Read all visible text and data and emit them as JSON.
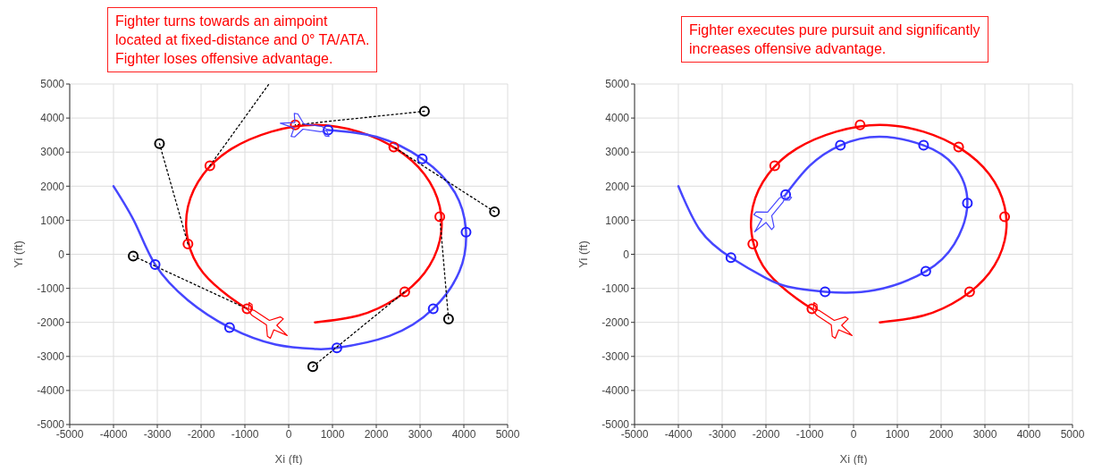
{
  "chart_data": [
    {
      "type": "line",
      "xlabel": "Xi (ft)",
      "ylabel": "Yi (ft)",
      "xlim": [
        -5000,
        5000
      ],
      "ylim": [
        -5000,
        5000
      ],
      "xticks": [
        -5000,
        -4000,
        -3000,
        -2000,
        -1000,
        0,
        1000,
        2000,
        3000,
        4000,
        5000
      ],
      "yticks": [
        -5000,
        -4000,
        -3000,
        -2000,
        -1000,
        0,
        1000,
        2000,
        3000,
        4000,
        5000
      ],
      "grid": true,
      "annotations": [
        "Fighter turns towards an aimpoint\nlocated at fixed-distance and 0° TA/ATA.\nFighter loses offensive advantage."
      ],
      "series": [
        {
          "color": "#ff0000",
          "x": [
            600,
            1600,
            2450,
            3100,
            3450,
            3450,
            3100,
            2450,
            1600,
            600,
            -400,
            -1300,
            -1950,
            -2300,
            -2300,
            -1950,
            -1300,
            -950
          ],
          "values": [
            -2000,
            -1800,
            -1300,
            -550,
            400,
            1400,
            2350,
            3100,
            3600,
            3800,
            3600,
            3100,
            2350,
            1400,
            400,
            -550,
            -1300,
            -1600
          ]
        },
        {
          "color": "#4646ff",
          "x": [
            -4000,
            -3500,
            -3050,
            -2300,
            -1350,
            -300,
            600,
            1100,
            2300,
            3300,
            3900,
            4050,
            3800,
            3050,
            2000,
            900
          ],
          "values": [
            2000,
            900,
            -300,
            -1350,
            -2150,
            -2650,
            -2780,
            -2750,
            -2400,
            -1600,
            -500,
            650,
            1800,
            2800,
            3450,
            3650
          ]
        },
        {
          "color": "#000000",
          "line_style": "dotted",
          "x": [
            -2950,
            -2300
          ],
          "values": [
            3250,
            300
          ]
        },
        {
          "color": "#000000",
          "line_style": "dotted",
          "x": [
            -3550,
            -950
          ],
          "values": [
            -50,
            -1600
          ]
        },
        {
          "color": "#000000",
          "line_style": "dotted",
          "x": [
            3100,
            150
          ],
          "values": [
            4200,
            3800
          ]
        },
        {
          "color": "#000000",
          "line_style": "dotted",
          "x": [
            4700,
            2400
          ],
          "values": [
            1250,
            3150
          ]
        },
        {
          "color": "#000000",
          "line_style": "dotted",
          "x": [
            3650,
            3450
          ],
          "values": [
            -1900,
            1100
          ]
        },
        {
          "color": "#000000",
          "line_style": "dotted",
          "x": [
            550,
            2650
          ],
          "values": [
            -3300,
            -1100
          ]
        },
        {
          "color": "#000000",
          "line_style": "dotted",
          "x": [
            -1800,
            -450
          ],
          "values": [
            2600,
            5000
          ]
        },
        {
          "type": "scatter",
          "marker": "circle",
          "color": "#ff0000",
          "x": [
            2650,
            3450,
            2400,
            150,
            -1800,
            -2300,
            -950
          ],
          "values": [
            -1100,
            1100,
            3150,
            3800,
            2600,
            300,
            -1600
          ]
        },
        {
          "type": "scatter",
          "marker": "circle",
          "color": "#2020ff",
          "x": [
            -3050,
            -1350,
            1100,
            3300,
            4050,
            3050,
            900
          ],
          "values": [
            -300,
            -2150,
            -2750,
            -1600,
            650,
            2800,
            3650
          ]
        },
        {
          "type": "scatter",
          "marker": "circle",
          "color": "#000000",
          "x": [
            -2950,
            -3550,
            3100,
            4700,
            3650,
            550
          ],
          "values": [
            3250,
            -50,
            4200,
            1250,
            -1900,
            -3300
          ]
        }
      ]
    },
    {
      "type": "line",
      "xlabel": "Xi (ft)",
      "ylabel": "Yi (ft)",
      "xlim": [
        -5000,
        5000
      ],
      "ylim": [
        -5000,
        5000
      ],
      "xticks": [
        -5000,
        -4000,
        -3000,
        -2000,
        -1000,
        0,
        1000,
        2000,
        3000,
        4000,
        5000
      ],
      "yticks": [
        -5000,
        -4000,
        -3000,
        -2000,
        -1000,
        0,
        1000,
        2000,
        3000,
        4000,
        5000
      ],
      "grid": true,
      "annotations": [
        "Fighter executes pure pursuit and significantly\nincreases offensive advantage."
      ],
      "series": [
        {
          "color": "#ff0000",
          "x": [
            600,
            1600,
            2450,
            3100,
            3450,
            3450,
            3100,
            2450,
            1600,
            600,
            -400,
            -1300,
            -1950,
            -2300,
            -2300,
            -1950,
            -1300,
            -950
          ],
          "values": [
            -2000,
            -1800,
            -1300,
            -550,
            400,
            1400,
            2350,
            3100,
            3600,
            3800,
            3600,
            3100,
            2350,
            1400,
            400,
            -550,
            -1300,
            -1600
          ]
        },
        {
          "color": "#4646ff",
          "x": [
            -4000,
            -3500,
            -2800,
            -2000,
            -1500,
            -650,
            500,
            1650,
            2300,
            2600,
            2300,
            1600,
            600,
            -300,
            -1000,
            -1550
          ],
          "values": [
            2000,
            700,
            -100,
            -700,
            -950,
            -1100,
            -1050,
            -500,
            300,
            1500,
            2600,
            3200,
            3450,
            3200,
            2600,
            1750
          ]
        },
        {
          "type": "scatter",
          "marker": "circle",
          "color": "#ff0000",
          "x": [
            2650,
            3450,
            2400,
            150,
            -1800,
            -2300,
            -950
          ],
          "values": [
            -1100,
            1100,
            3150,
            3800,
            2600,
            300,
            -1600
          ]
        },
        {
          "type": "scatter",
          "marker": "circle",
          "color": "#2020ff",
          "x": [
            -2800,
            -650,
            1650,
            2600,
            1600,
            -300,
            -1550
          ],
          "values": [
            -100,
            -1100,
            -500,
            1500,
            3200,
            3200,
            1750
          ]
        }
      ]
    }
  ]
}
